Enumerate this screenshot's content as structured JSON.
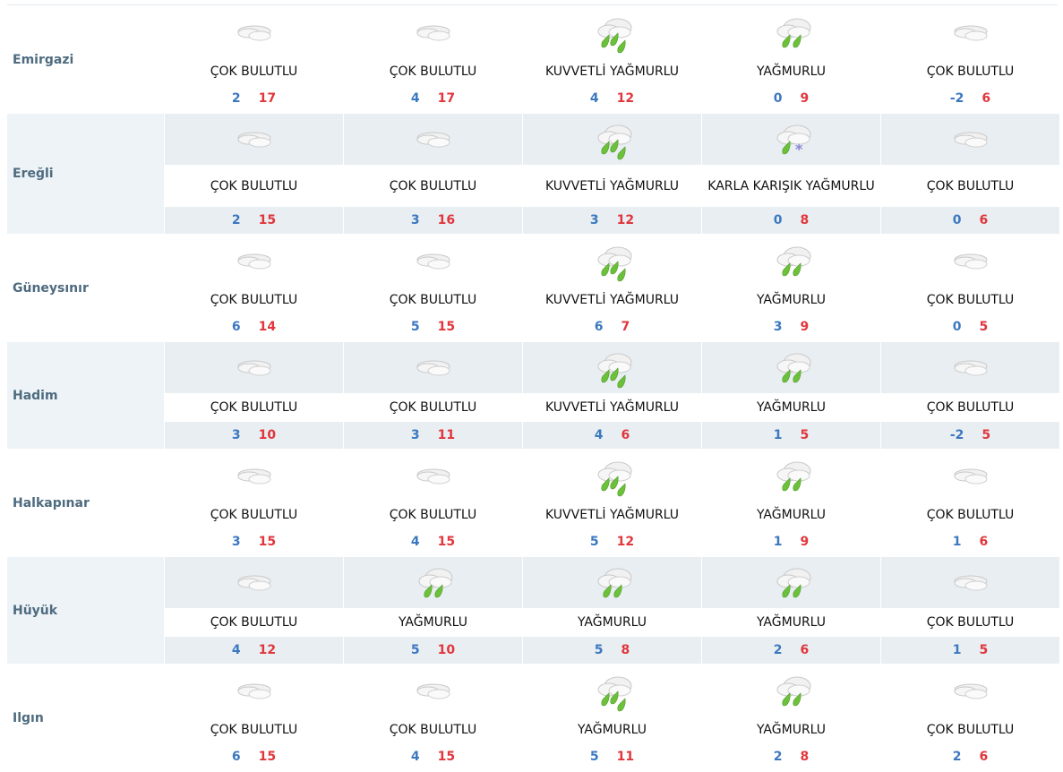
{
  "colors": {
    "min_temp": "#3b78c0",
    "max_temp": "#e0363c",
    "alt_row": "#e8eef2",
    "city": "#4e6b7f"
  },
  "rows": [
    {
      "city": "Emirgazi",
      "days": [
        {
          "icon": "cloudy-icon",
          "desc": "ÇOK BULUTLU",
          "min": "2",
          "max": "17"
        },
        {
          "icon": "cloudy-icon",
          "desc": "ÇOK BULUTLU",
          "min": "4",
          "max": "17"
        },
        {
          "icon": "heavy-rain-icon",
          "desc": "KUVVETLİ YAĞMURLU",
          "min": "4",
          "max": "12"
        },
        {
          "icon": "rain-icon",
          "desc": "YAĞMURLU",
          "min": "0",
          "max": "9"
        },
        {
          "icon": "cloudy-icon",
          "desc": "ÇOK BULUTLU",
          "min": "-2",
          "max": "6"
        }
      ]
    },
    {
      "city": "Ereğli",
      "days": [
        {
          "icon": "cloudy-icon",
          "desc": "ÇOK BULUTLU",
          "min": "2",
          "max": "15"
        },
        {
          "icon": "cloudy-icon",
          "desc": "ÇOK BULUTLU",
          "min": "3",
          "max": "16"
        },
        {
          "icon": "heavy-rain-icon",
          "desc": "KUVVETLİ YAĞMURLU",
          "min": "3",
          "max": "12"
        },
        {
          "icon": "sleet-icon",
          "desc": "KARLA KARIŞIK YAĞMURLU",
          "min": "0",
          "max": "8"
        },
        {
          "icon": "cloudy-icon",
          "desc": "ÇOK BULUTLU",
          "min": "0",
          "max": "6"
        }
      ]
    },
    {
      "city": "Güneysınır",
      "days": [
        {
          "icon": "cloudy-icon",
          "desc": "ÇOK BULUTLU",
          "min": "6",
          "max": "14"
        },
        {
          "icon": "cloudy-icon",
          "desc": "ÇOK BULUTLU",
          "min": "5",
          "max": "15"
        },
        {
          "icon": "heavy-rain-icon",
          "desc": "KUVVETLİ YAĞMURLU",
          "min": "6",
          "max": "7"
        },
        {
          "icon": "rain-icon",
          "desc": "YAĞMURLU",
          "min": "3",
          "max": "9"
        },
        {
          "icon": "cloudy-icon",
          "desc": "ÇOK BULUTLU",
          "min": "0",
          "max": "5"
        }
      ]
    },
    {
      "city": "Hadim",
      "days": [
        {
          "icon": "cloudy-icon",
          "desc": "ÇOK BULUTLU",
          "min": "3",
          "max": "10"
        },
        {
          "icon": "cloudy-icon",
          "desc": "ÇOK BULUTLU",
          "min": "3",
          "max": "11"
        },
        {
          "icon": "heavy-rain-icon",
          "desc": "KUVVETLİ YAĞMURLU",
          "min": "4",
          "max": "6"
        },
        {
          "icon": "rain-icon",
          "desc": "YAĞMURLU",
          "min": "1",
          "max": "5"
        },
        {
          "icon": "cloudy-icon",
          "desc": "ÇOK BULUTLU",
          "min": "-2",
          "max": "5"
        }
      ]
    },
    {
      "city": "Halkapınar",
      "days": [
        {
          "icon": "cloudy-icon",
          "desc": "ÇOK BULUTLU",
          "min": "3",
          "max": "15"
        },
        {
          "icon": "cloudy-icon",
          "desc": "ÇOK BULUTLU",
          "min": "4",
          "max": "15"
        },
        {
          "icon": "heavy-rain-icon",
          "desc": "KUVVETLİ YAĞMURLU",
          "min": "5",
          "max": "12"
        },
        {
          "icon": "rain-icon",
          "desc": "YAĞMURLU",
          "min": "1",
          "max": "9"
        },
        {
          "icon": "cloudy-icon",
          "desc": "ÇOK BULUTLU",
          "min": "1",
          "max": "6"
        }
      ]
    },
    {
      "city": "Hüyük",
      "days": [
        {
          "icon": "cloudy-icon",
          "desc": "ÇOK BULUTLU",
          "min": "4",
          "max": "12"
        },
        {
          "icon": "rain-icon",
          "desc": "YAĞMURLU",
          "min": "5",
          "max": "10"
        },
        {
          "icon": "rain-icon",
          "desc": "YAĞMURLU",
          "min": "5",
          "max": "8"
        },
        {
          "icon": "rain-icon",
          "desc": "YAĞMURLU",
          "min": "2",
          "max": "6"
        },
        {
          "icon": "cloudy-icon",
          "desc": "ÇOK BULUTLU",
          "min": "1",
          "max": "5"
        }
      ]
    },
    {
      "city": "Ilgın",
      "days": [
        {
          "icon": "cloudy-icon",
          "desc": "ÇOK BULUTLU",
          "min": "6",
          "max": "15"
        },
        {
          "icon": "cloudy-icon",
          "desc": "ÇOK BULUTLU",
          "min": "4",
          "max": "15"
        },
        {
          "icon": "heavy-rain-icon",
          "desc": "YAĞMURLU",
          "min": "5",
          "max": "11"
        },
        {
          "icon": "rain-icon",
          "desc": "YAĞMURLU",
          "min": "2",
          "max": "8"
        },
        {
          "icon": "cloudy-icon",
          "desc": "ÇOK BULUTLU",
          "min": "2",
          "max": "6"
        }
      ]
    }
  ]
}
